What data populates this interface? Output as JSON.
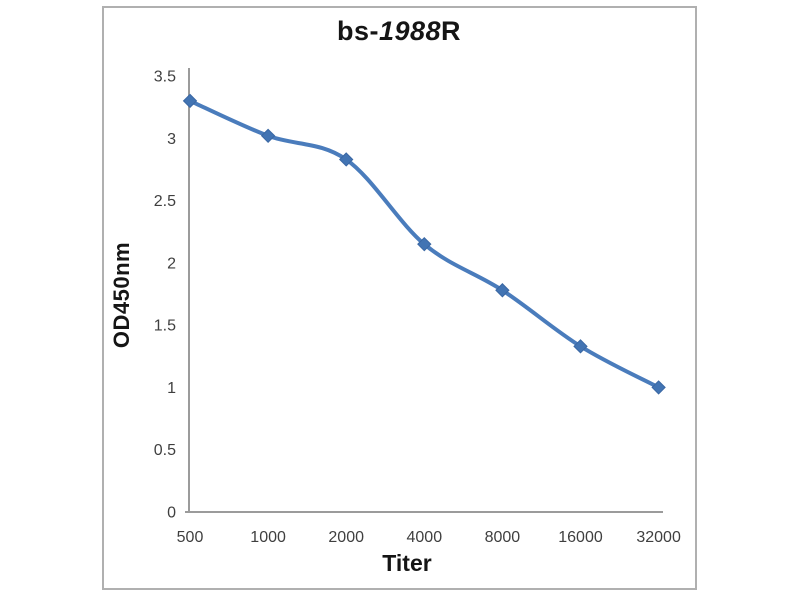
{
  "page": {
    "background_color": "#ffffff",
    "frame_border_color": "#b0b0b0"
  },
  "chart_data": {
    "type": "line",
    "title": {
      "prefix": "bs-",
      "italic": "1988",
      "suffix": "R"
    },
    "xlabel": "Titer",
    "ylabel": "OD450nm",
    "categories": [
      "500",
      "1000",
      "2000",
      "4000",
      "8000",
      "16000",
      "32000"
    ],
    "series": [
      {
        "name": "OD450nm",
        "values": [
          3.3,
          3.02,
          2.83,
          2.15,
          1.78,
          1.33,
          1.0
        ]
      }
    ],
    "y_ticks": [
      "3.5",
      "3",
      "2.5",
      "2",
      "1.5",
      "1",
      "0.5",
      "0"
    ],
    "y_tick_values": [
      3.5,
      3,
      2.5,
      2,
      1.5,
      1,
      0.5,
      0
    ],
    "ylim": [
      0,
      3.5
    ],
    "x_scale": "categorical (2-fold serial dilution)",
    "grid": false,
    "legend": "none",
    "line_smooth": true,
    "marker": "diamond",
    "colors": {
      "line": "#4a7cbc",
      "marker_fill": "#4274b3",
      "marker_stroke": "#3a67a3",
      "axis": "#9b9b9b",
      "tick_label": "#3f3f3f",
      "title_text": "#151515"
    }
  }
}
